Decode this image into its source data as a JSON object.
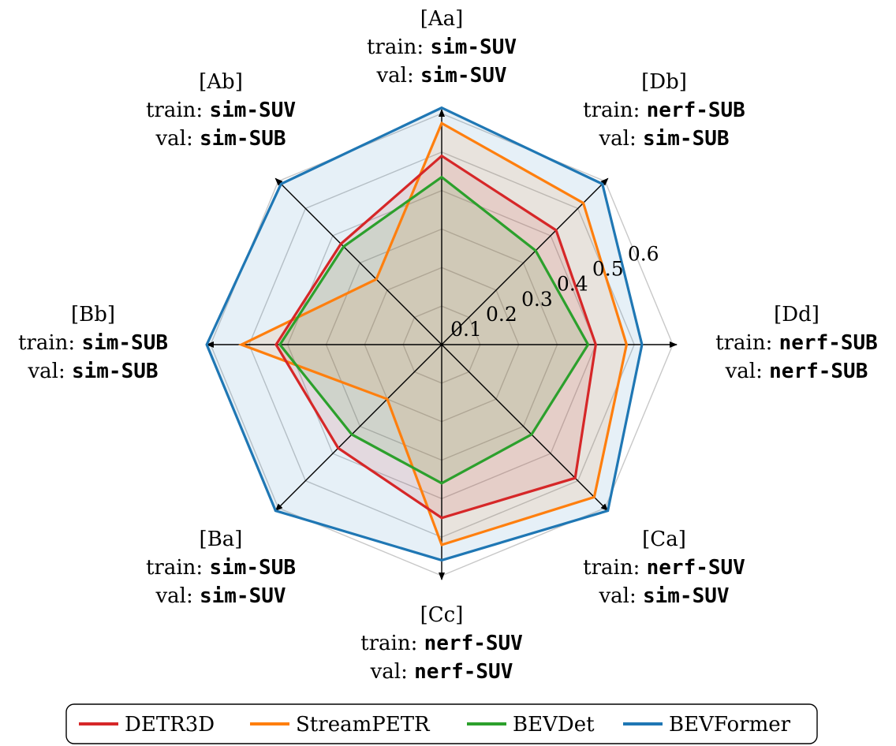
{
  "chart_data": {
    "type": "radar",
    "rlim": [
      0.0,
      0.6
    ],
    "r_ticks": [
      "0.1",
      "0.2",
      "0.3",
      "0.4",
      "0.5",
      "0.6"
    ],
    "r_tick_values": [
      0.1,
      0.2,
      0.3,
      0.4,
      0.5,
      0.6
    ],
    "grid": true,
    "legend_position": "bottom",
    "axes": [
      {
        "id": "Aa",
        "title": "[Aa]",
        "train_prefix": "train: ",
        "train": "sim-SUV",
        "val_prefix": "val: ",
        "val": "sim-SUV"
      },
      {
        "id": "Db",
        "title": "[Db]",
        "train_prefix": "train: ",
        "train": "nerf-SUB",
        "val_prefix": "val: ",
        "val": "sim-SUB"
      },
      {
        "id": "Dd",
        "title": "[Dd]",
        "train_prefix": "train: ",
        "train": "nerf-SUB",
        "val_prefix": "val: ",
        "val": "nerf-SUB"
      },
      {
        "id": "Ca",
        "title": "[Ca]",
        "train_prefix": "train: ",
        "train": "nerf-SUV",
        "val_prefix": "val: ",
        "val": "sim-SUV"
      },
      {
        "id": "Cc",
        "title": "[Cc]",
        "train_prefix": "train: ",
        "train": "nerf-SUV",
        "val_prefix": "val: ",
        "val": "nerf-SUV"
      },
      {
        "id": "Ba",
        "title": "[Ba]",
        "train_prefix": "train: ",
        "train": "sim-SUB",
        "val_prefix": "val: ",
        "val": "sim-SUV"
      },
      {
        "id": "Bb",
        "title": "[Bb]",
        "train_prefix": "train: ",
        "train": "sim-SUB",
        "val_prefix": "val: ",
        "val": "sim-SUB"
      },
      {
        "id": "Ab",
        "title": "[Ab]",
        "train_prefix": "train: ",
        "train": "sim-SUV",
        "val_prefix": "val: ",
        "val": "sim-SUB"
      }
    ],
    "series": [
      {
        "name": "BEVFormer",
        "color": "#1f77b4",
        "values": [
          0.615,
          0.59,
          0.52,
          0.61,
          0.56,
          0.61,
          0.61,
          0.59
        ]
      },
      {
        "name": "StreamPETR",
        "color": "#ff7f0e",
        "values": [
          0.575,
          0.52,
          0.48,
          0.56,
          0.52,
          0.2,
          0.52,
          0.24
        ]
      },
      {
        "name": "DETR3D",
        "color": "#d62728",
        "values": [
          0.49,
          0.42,
          0.4,
          0.49,
          0.45,
          0.38,
          0.43,
          0.37
        ]
      },
      {
        "name": "BEVDet",
        "color": "#2ca02c",
        "values": [
          0.435,
          0.345,
          0.38,
          0.33,
          0.36,
          0.33,
          0.42,
          0.36
        ]
      }
    ],
    "legend": [
      "DETR3D",
      "StreamPETR",
      "BEVDet",
      "BEVFormer"
    ]
  }
}
